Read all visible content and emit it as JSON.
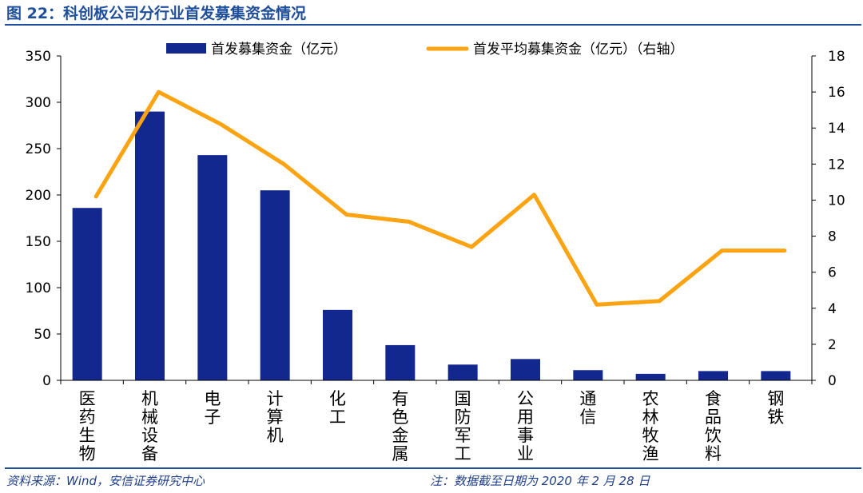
{
  "header": {
    "title": "图 22：科创板公司分行业首发募集资金情况"
  },
  "footer": {
    "source": "资料来源：Wind，安信证券研究中心",
    "note": "注：数据截至日期为 2020 年 2 月 28 日"
  },
  "chart_data": {
    "type": "bar",
    "categories": [
      "医药生物",
      "机械设备",
      "电子",
      "计算机",
      "化工",
      "有色金属",
      "国防军工",
      "公用事业",
      "通信",
      "农林牧渔",
      "食品饮料",
      "钢铁"
    ],
    "series": [
      {
        "name": "首发募集资金（亿元）",
        "type": "bar",
        "axis": "left",
        "color": "#13288f",
        "values": [
          186,
          290,
          243,
          205,
          76,
          38,
          17,
          23,
          11,
          7,
          10,
          10
        ]
      },
      {
        "name": "首发平均募集资金（亿元）（右轴）",
        "type": "line",
        "axis": "right",
        "color": "#fba311",
        "values": [
          10.2,
          16.0,
          14.2,
          12.0,
          9.2,
          8.8,
          7.4,
          10.3,
          4.2,
          4.4,
          7.2,
          7.2
        ]
      }
    ],
    "y_left": {
      "min": 0,
      "max": 350,
      "ticks": [
        0,
        50,
        100,
        150,
        200,
        250,
        300,
        350
      ]
    },
    "y_right": {
      "min": 0,
      "max": 18,
      "ticks": [
        0,
        2,
        4,
        6,
        8,
        10,
        12,
        14,
        16,
        18
      ]
    },
    "grid": false,
    "legend": "top"
  }
}
